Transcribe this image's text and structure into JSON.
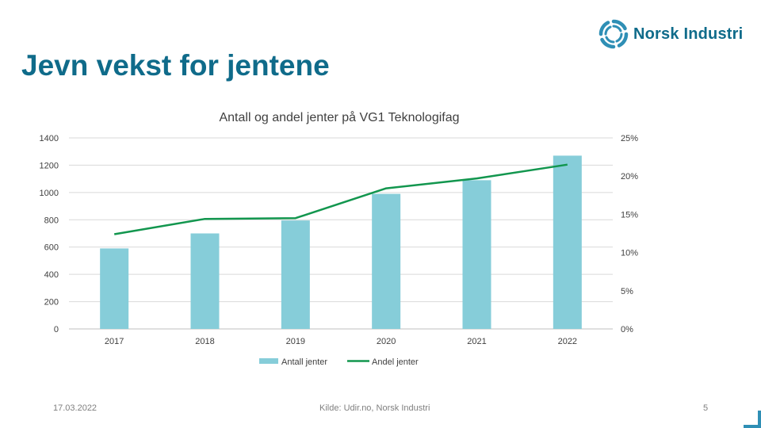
{
  "slide": {
    "title": "Jevn vekst for jentene",
    "logo_text": "Norsk Industri",
    "date": "17.03.2022",
    "source": "Kilde: Udir.no, Norsk Industri",
    "page_number": "5",
    "colors": {
      "title": "#0f6b8a",
      "bar": "#86cdd9",
      "line": "#12964e",
      "accent": "#2f8fb5"
    }
  },
  "chart_data": {
    "type": "bar",
    "title": "Antall og andel jenter på VG1 Teknologifag",
    "categories": [
      "2017",
      "2018",
      "2019",
      "2020",
      "2021",
      "2022"
    ],
    "series": [
      {
        "name": "Antall jenter",
        "type": "bar",
        "axis": "left",
        "values": [
          590,
          700,
          795,
          990,
          1090,
          1270
        ]
      },
      {
        "name": "Andel jenter",
        "type": "line",
        "axis": "right",
        "values": [
          0.124,
          0.144,
          0.145,
          0.184,
          0.197,
          0.215
        ]
      }
    ],
    "y_left": {
      "min": 0,
      "max": 1400,
      "ticks": [
        "0",
        "200",
        "400",
        "600",
        "800",
        "1000",
        "1200",
        "1400"
      ]
    },
    "y_right": {
      "min": 0,
      "max": 0.25,
      "ticks": [
        "0%",
        "5%",
        "10%",
        "15%",
        "20%",
        "25%"
      ]
    },
    "grid": true,
    "legend": "bottom"
  }
}
